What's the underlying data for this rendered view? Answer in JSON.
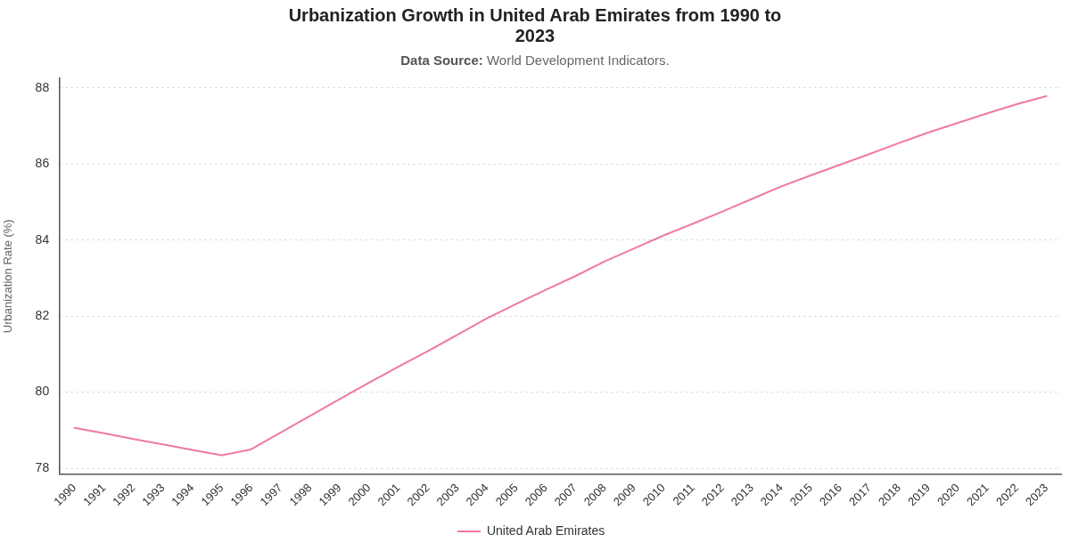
{
  "chart_data": {
    "type": "line",
    "title": "Urbanization Growth in United Arab Emirates from 1990 to 2023",
    "subtitle": "Data Source: World Development Indicators.",
    "ylabel": "Urbanization Rate (%)",
    "categories": [
      "1990",
      "1991",
      "1992",
      "1993",
      "1994",
      "1995",
      "1996",
      "1997",
      "1998",
      "1999",
      "2000",
      "2001",
      "2002",
      "2003",
      "2004",
      "2005",
      "2006",
      "2007",
      "2008",
      "2009",
      "2010",
      "2011",
      "2012",
      "2013",
      "2014",
      "2015",
      "2016",
      "2017",
      "2018",
      "2019",
      "2020",
      "2021",
      "2022",
      "2023"
    ],
    "series": [
      {
        "name": "United Arab Emirates",
        "color": "#ef78a8",
        "values": [
          79.06,
          78.92,
          78.77,
          78.63,
          78.48,
          78.34,
          78.5,
          78.94,
          79.38,
          79.82,
          80.25,
          80.67,
          81.08,
          81.51,
          81.94,
          82.32,
          82.69,
          83.05,
          83.44,
          83.78,
          84.12,
          84.43,
          84.75,
          85.08,
          85.41,
          85.7,
          85.98,
          86.26,
          86.55,
          86.83,
          87.08,
          87.33,
          87.57,
          87.78
        ]
      }
    ],
    "ylim": [
      77.85,
      88.25
    ],
    "yticks": [
      78,
      80,
      82,
      84,
      86,
      88
    ],
    "grid": "y",
    "legend": "bottom",
    "marker": "none",
    "line_style": "solid"
  }
}
